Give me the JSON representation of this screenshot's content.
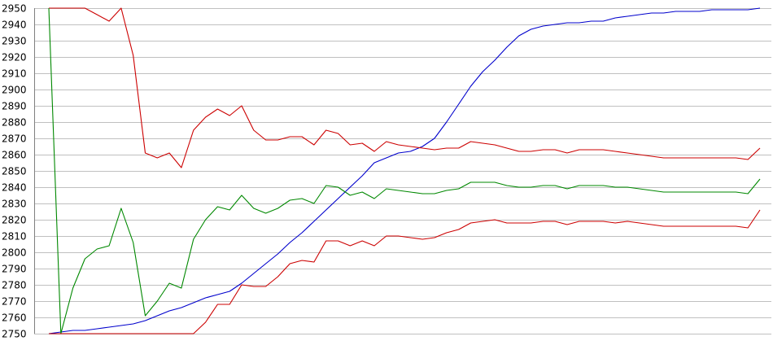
{
  "chart_data": {
    "type": "line",
    "title": "",
    "xlabel": "",
    "ylabel": "",
    "ylim": [
      2750,
      2950
    ],
    "yticks": [
      2750,
      2760,
      2770,
      2780,
      2790,
      2800,
      2810,
      2820,
      2830,
      2840,
      2850,
      2860,
      2870,
      2880,
      2890,
      2900,
      2910,
      2920,
      2930,
      2940,
      2950
    ],
    "grid": true,
    "legend": "none",
    "x": [
      1,
      2,
      3,
      4,
      5,
      6,
      7,
      8,
      9,
      10,
      11,
      12,
      13,
      14,
      15,
      16,
      17,
      18,
      19,
      20,
      21,
      22,
      23,
      24,
      25,
      26,
      27,
      28,
      29,
      30,
      31,
      32,
      33,
      34,
      35,
      36,
      37,
      38,
      39,
      40,
      41,
      42,
      43,
      44,
      45,
      46,
      47,
      48,
      49,
      50,
      51,
      52,
      53,
      54,
      55,
      56,
      57,
      58,
      59,
      60
    ],
    "series": [
      {
        "color": "#0000cc",
        "values": [
          2750,
          2751,
          2752,
          2752,
          2753,
          2754,
          2755,
          2756,
          2758,
          2761,
          2764,
          2766,
          2769,
          2772,
          2774,
          2776,
          2781,
          2787,
          2793,
          2799,
          2806,
          2812,
          2819,
          2826,
          2833,
          2840,
          2847,
          2855,
          2858,
          2861,
          2862,
          2865,
          2870,
          2880,
          2891,
          2902,
          2911,
          2918,
          2926,
          2933,
          2937,
          2939,
          2940,
          2941,
          2941,
          2942,
          2942,
          2944,
          2945,
          2946,
          2947,
          2947,
          2948,
          2948,
          2948,
          2949,
          2949,
          2949,
          2949,
          2950
        ]
      },
      {
        "color": "#cc0000",
        "values": [
          2950,
          2950,
          2950,
          2950,
          2946,
          2942,
          2950,
          2921,
          2861,
          2858,
          2861,
          2852,
          2875,
          2883,
          2888,
          2884,
          2890,
          2875,
          2869,
          2869,
          2871,
          2871,
          2866,
          2875,
          2873,
          2866,
          2867,
          2862,
          2868,
          2866,
          2865,
          2864,
          2863,
          2864,
          2864,
          2868,
          2867,
          2866,
          2864,
          2862,
          2862,
          2863,
          2863,
          2861,
          2863,
          2863,
          2863,
          2862,
          2861,
          2860,
          2859,
          2858,
          2858,
          2858,
          2858,
          2858,
          2858,
          2858,
          2857,
          2864
        ]
      },
      {
        "color": "#008800",
        "values": [
          2950,
          2750,
          2778,
          2796,
          2802,
          2804,
          2827,
          2806,
          2761,
          2770,
          2781,
          2778,
          2808,
          2820,
          2828,
          2826,
          2835,
          2827,
          2824,
          2827,
          2832,
          2833,
          2830,
          2841,
          2840,
          2835,
          2837,
          2833,
          2839,
          2838,
          2837,
          2836,
          2836,
          2838,
          2839,
          2843,
          2843,
          2843,
          2841,
          2840,
          2840,
          2841,
          2841,
          2839,
          2841,
          2841,
          2841,
          2840,
          2840,
          2839,
          2838,
          2837,
          2837,
          2837,
          2837,
          2837,
          2837,
          2837,
          2836,
          2845
        ]
      },
      {
        "color": "#cc0000",
        "values": [
          2750,
          2750,
          2750,
          2750,
          2750,
          2750,
          2750,
          2750,
          2750,
          2750,
          2750,
          2750,
          2750,
          2757,
          2768,
          2768,
          2780,
          2779,
          2779,
          2785,
          2793,
          2795,
          2794,
          2807,
          2807,
          2804,
          2807,
          2804,
          2810,
          2810,
          2809,
          2808,
          2809,
          2812,
          2814,
          2818,
          2819,
          2820,
          2818,
          2818,
          2818,
          2819,
          2819,
          2817,
          2819,
          2819,
          2819,
          2818,
          2819,
          2818,
          2817,
          2816,
          2816,
          2816,
          2816,
          2816,
          2816,
          2816,
          2815,
          2826
        ]
      }
    ]
  }
}
